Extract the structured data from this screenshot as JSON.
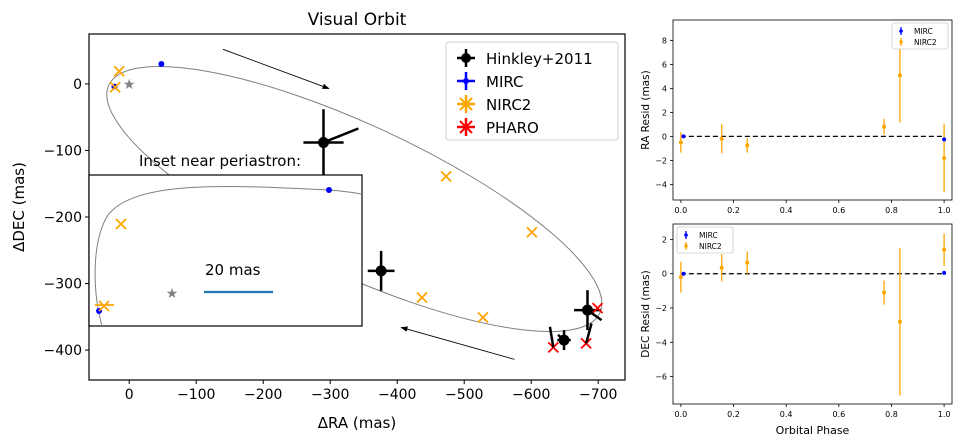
{
  "chart_data": [
    {
      "type": "scatter",
      "title": "Visual Orbit",
      "xlabel": "ΔRA (mas)",
      "ylabel": "ΔDEC (mas)",
      "xlim": [
        60,
        -740
      ],
      "ylim": [
        -445,
        75
      ],
      "x_inverted": true,
      "xticks": [
        0,
        -100,
        -200,
        -300,
        -400,
        -500,
        -600,
        -700
      ],
      "xtick_labels": [
        "0",
        "−100",
        "−200",
        "−300",
        "−400",
        "−500",
        "−600",
        "−700"
      ],
      "yticks": [
        0,
        -100,
        -200,
        -300,
        -400
      ],
      "ytick_labels": [
        "0",
        "−100",
        "−200",
        "−300",
        "−400"
      ],
      "grid": false,
      "legend_position": "top-right",
      "legend": [
        {
          "label": "Hinkley+2011",
          "color": "#000000",
          "marker": "o"
        },
        {
          "label": "MIRC",
          "color": "#0000ff",
          "marker": "+"
        },
        {
          "label": "NIRC2",
          "color": "#ffa500",
          "marker": "x"
        },
        {
          "label": "PHARO",
          "color": "#ff0000",
          "marker": "x"
        }
      ],
      "primary_star": {
        "ra": 0,
        "dec": 0,
        "color": "#808080",
        "marker": "star"
      },
      "orbit": {
        "center_ra": -336,
        "center_dec": -173,
        "semi_major": 404,
        "semi_minor": 112,
        "angle_deg": 24.9,
        "color": "#808080"
      },
      "series": [
        {
          "name": "Hinkley+2011",
          "color": "#000000",
          "points": [
            {
              "ra": -290,
              "dec": -88,
              "err_ra": 30,
              "err_dec": 50
            },
            {
              "ra": -376,
              "dec": -281,
              "err_ra": 20,
              "err_dec": 30
            },
            {
              "ra": -684,
              "dec": -340,
              "err_ra": 20,
              "err_dec": 30
            },
            {
              "ra": -649,
              "dec": -385,
              "err_ra": 10,
              "err_dec": 15
            }
          ]
        },
        {
          "name": "MIRC",
          "color": "#0000ff",
          "points": [
            {
              "ra": -48,
              "dec": 30
            },
            {
              "ra": 22,
              "dec": -4
            }
          ]
        },
        {
          "name": "NIRC2",
          "color": "#ffa500",
          "points": [
            {
              "ra": 15,
              "dec": 19
            },
            {
              "ra": 21,
              "dec": -5
            },
            {
              "ra": -473,
              "dec": -139
            },
            {
              "ra": -601,
              "dec": -223
            },
            {
              "ra": -437,
              "dec": -321
            },
            {
              "ra": -528,
              "dec": -351
            }
          ]
        },
        {
          "name": "PHARO",
          "color": "#ff0000",
          "points": [
            {
              "ra": -699,
              "dec": -337
            },
            {
              "ra": -633,
              "dec": -396
            },
            {
              "ra": -682,
              "dec": -390
            }
          ]
        }
      ],
      "annotations": [
        {
          "text": "Inset near periastron:"
        },
        {
          "text": "20 mas",
          "type": "scale-bar",
          "scale_mas": 20,
          "color": "#1f77b4"
        }
      ],
      "direction_arrows": [
        {
          "from_ra": -140,
          "from_dec": 52,
          "to_ra": -298,
          "to_dec": -7
        },
        {
          "from_ra": -575,
          "from_dec": -414,
          "to_ra": -406,
          "to_dec": -366
        }
      ]
    },
    {
      "type": "scatter",
      "title": "",
      "xlabel": "",
      "ylabel": "RA Resid (mas)",
      "xlim": [
        -0.03,
        1.03
      ],
      "ylim": [
        -5.3,
        9.7
      ],
      "xticks": [
        0.0,
        0.2,
        0.4,
        0.6,
        0.8,
        1.0
      ],
      "xtick_labels": [
        "0.0",
        "0.2",
        "0.4",
        "0.6",
        "0.8",
        "1.0"
      ],
      "yticks": [
        -4,
        -2,
        0,
        2,
        4,
        6,
        8
      ],
      "ytick_labels": [
        "−4",
        "−2",
        "0",
        "2",
        "4",
        "6",
        "8"
      ],
      "legend_position": "top-right",
      "legend": [
        {
          "label": "MIRC",
          "color": "#0000ff"
        },
        {
          "label": "NIRC2",
          "color": "#ffa500"
        }
      ],
      "zero_line": true,
      "series": [
        {
          "name": "MIRC",
          "color": "#0000ff",
          "points": [
            {
              "x": 0.01,
              "y": 0.0,
              "err": 0.05
            },
            {
              "x": 1.0,
              "y": -0.25,
              "err": 0.05
            }
          ]
        },
        {
          "name": "NIRC2",
          "color": "#ffa500",
          "points": [
            {
              "x": 0.0,
              "y": -0.5,
              "err": 0.85
            },
            {
              "x": 0.155,
              "y": -0.2,
              "err": 1.2
            },
            {
              "x": 0.252,
              "y": -0.75,
              "err": 0.6
            },
            {
              "x": 0.772,
              "y": 0.8,
              "err": 0.65
            },
            {
              "x": 0.832,
              "y": 5.1,
              "err": 3.95
            },
            {
              "x": 1.0,
              "y": -1.8,
              "err": 2.85
            }
          ]
        }
      ]
    },
    {
      "type": "scatter",
      "title": "",
      "xlabel": "Orbital Phase",
      "ylabel": "DEC Resid (mas)",
      "xlim": [
        -0.03,
        1.03
      ],
      "ylim": [
        -7.6,
        2.9
      ],
      "xticks": [
        0.0,
        0.2,
        0.4,
        0.6,
        0.8,
        1.0
      ],
      "xtick_labels": [
        "0.0",
        "0.2",
        "0.4",
        "0.6",
        "0.8",
        "1.0"
      ],
      "yticks": [
        -6,
        -4,
        -2,
        0,
        2
      ],
      "ytick_labels": [
        "−6",
        "−4",
        "−2",
        "0",
        "2"
      ],
      "legend_position": "top-left",
      "legend": [
        {
          "label": "MIRC",
          "color": "#0000ff"
        },
        {
          "label": "NIRC2",
          "color": "#ffa500"
        }
      ],
      "zero_line": true,
      "series": [
        {
          "name": "MIRC",
          "color": "#0000ff",
          "points": [
            {
              "x": 0.01,
              "y": 0.0,
              "err": 0.05
            },
            {
              "x": 1.0,
              "y": 0.05,
              "err": 0.05
            }
          ]
        },
        {
          "name": "NIRC2",
          "color": "#ffa500",
          "points": [
            {
              "x": 0.0,
              "y": -0.2,
              "err": 0.9
            },
            {
              "x": 0.155,
              "y": 0.35,
              "err": 0.8
            },
            {
              "x": 0.252,
              "y": 0.65,
              "err": 0.65
            },
            {
              "x": 0.772,
              "y": -1.1,
              "err": 0.7
            },
            {
              "x": 0.832,
              "y": -2.8,
              "err": 4.3
            },
            {
              "x": 1.0,
              "y": 1.4,
              "err": 0.95
            }
          ]
        }
      ]
    }
  ]
}
